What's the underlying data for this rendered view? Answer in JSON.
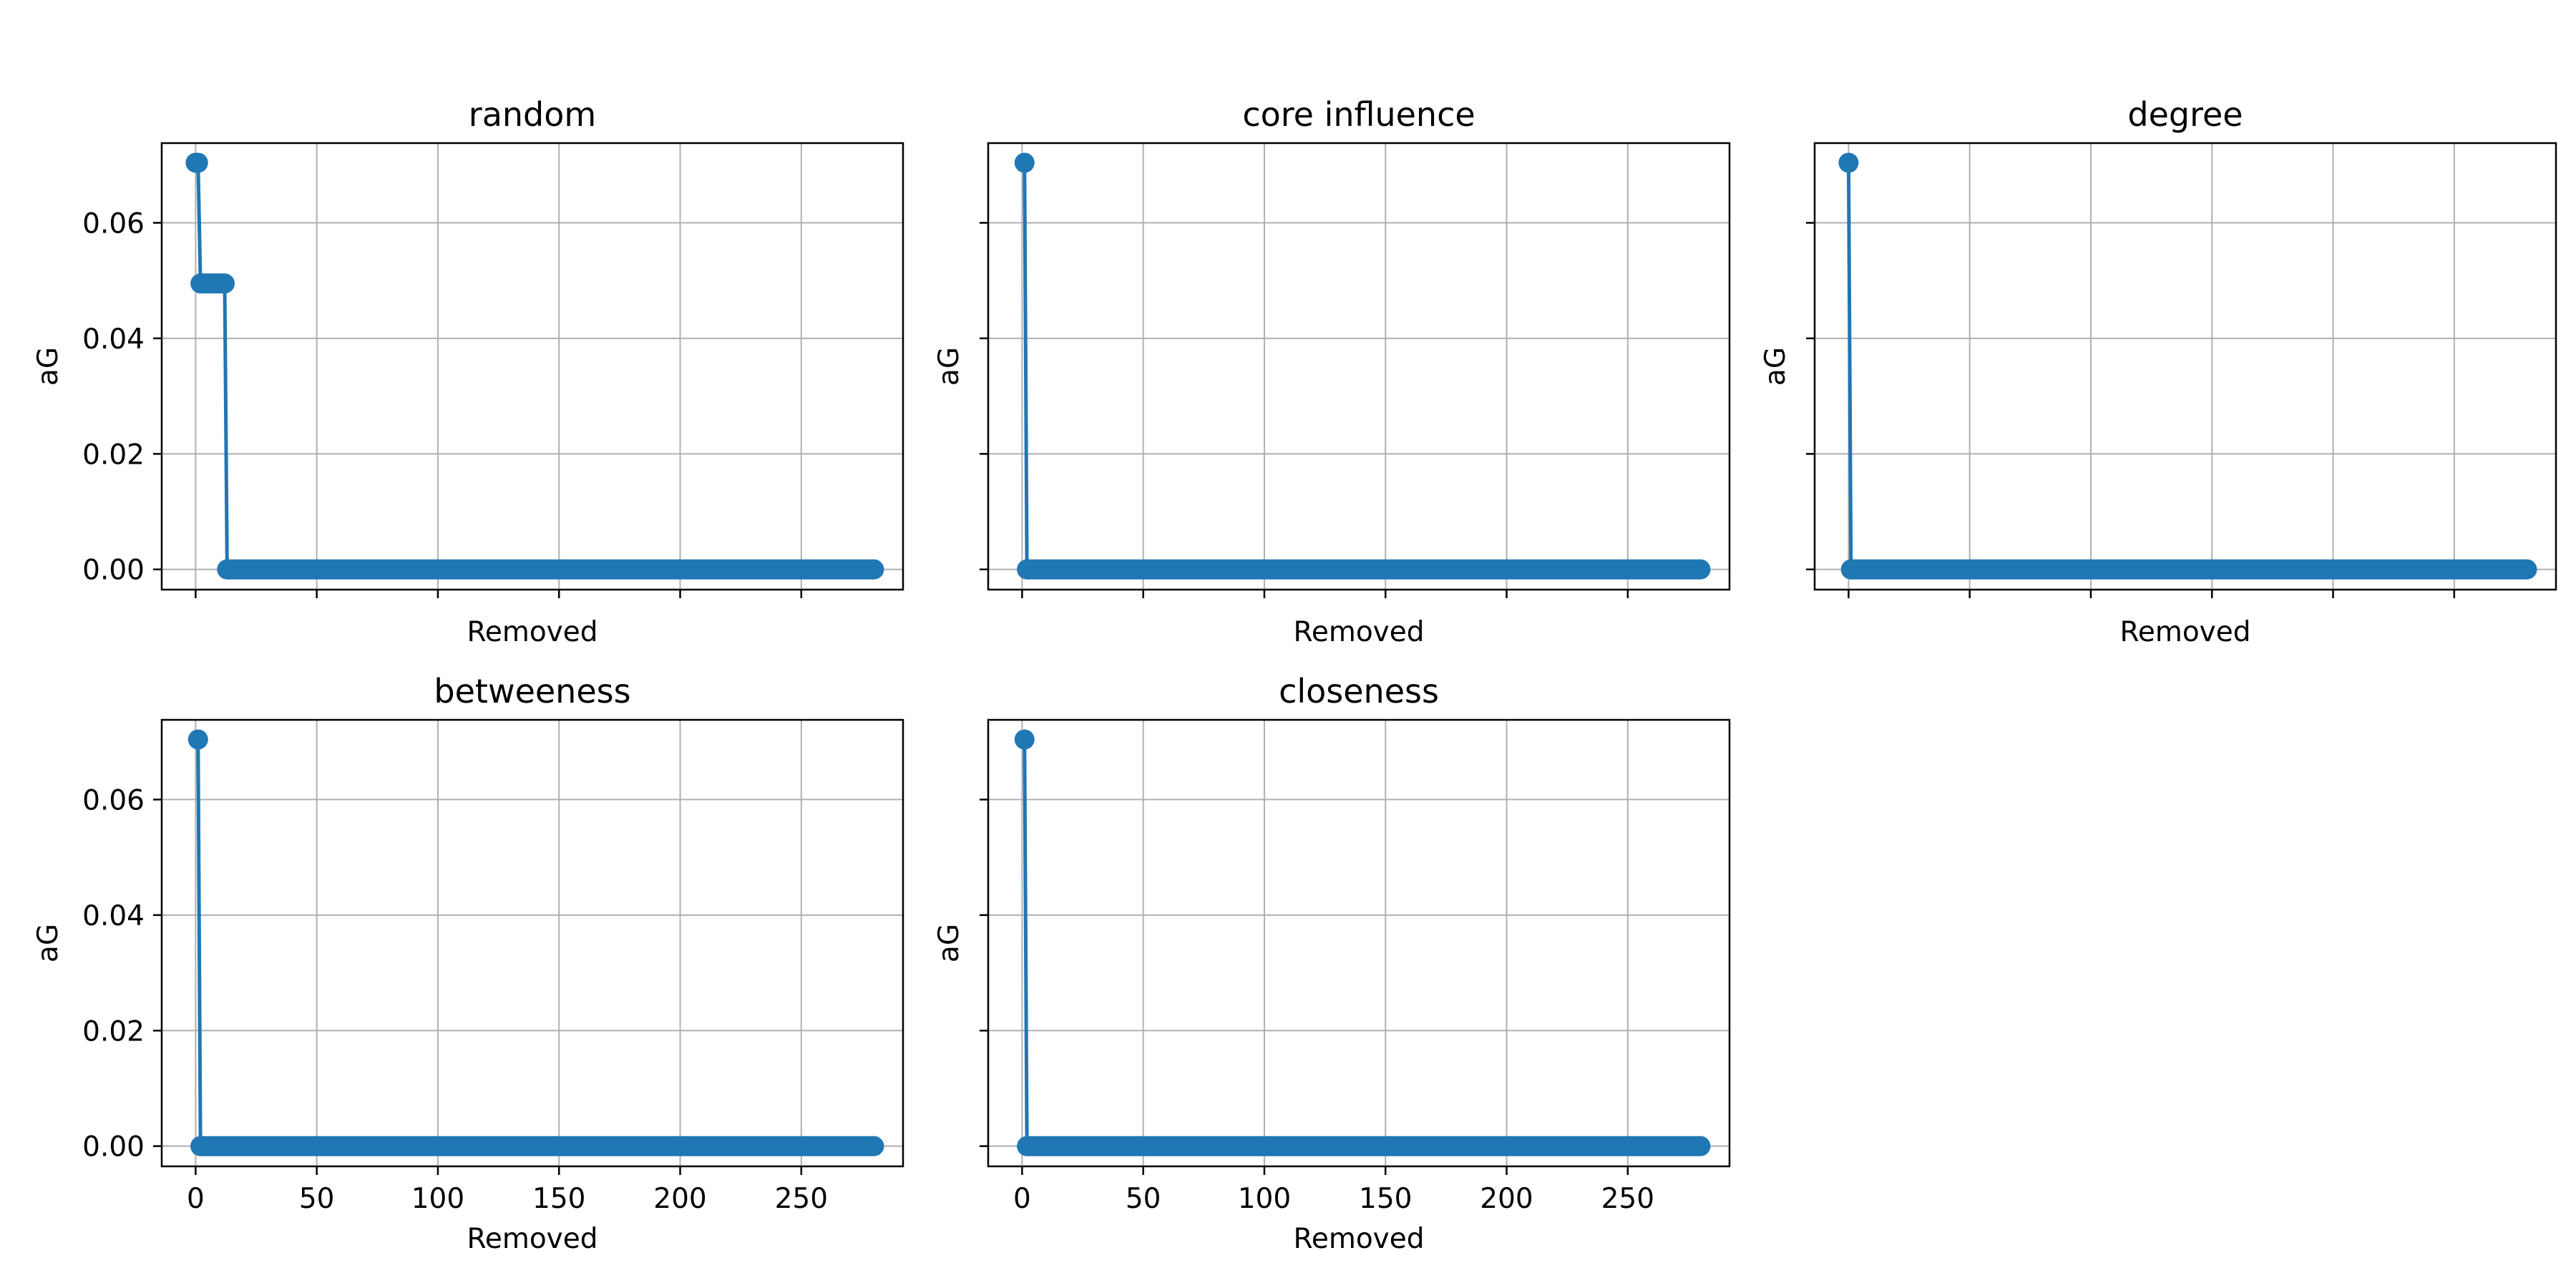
{
  "colors": {
    "series": "#1f77b4",
    "grid": "#b0b0b0",
    "axes": "#000000"
  },
  "chart_data": [
    {
      "type": "line",
      "title": "random",
      "xlabel": "Removed",
      "ylabel": "aG",
      "xlim": [
        -14,
        292
      ],
      "ylim": [
        -0.0035,
        0.0738
      ],
      "xticks": [
        0,
        50,
        100,
        150,
        200,
        250
      ],
      "yticks": [
        0.0,
        0.02,
        0.04,
        0.06
      ],
      "ytick_labels": [
        "0.00",
        "0.02",
        "0.04",
        "0.06"
      ],
      "show_xtick_labels": false,
      "show_ytick_labels": true,
      "grid": true,
      "series": [
        {
          "marker": "circle",
          "points": [
            [
              0,
              0.0704
            ],
            [
              1,
              0.0704
            ],
            [
              2,
              0.0495
            ],
            [
              3,
              0.0495
            ],
            [
              4,
              0.0495
            ],
            [
              5,
              0.0495
            ],
            [
              6,
              0.0495
            ],
            [
              7,
              0.0495
            ],
            [
              8,
              0.0495
            ],
            [
              9,
              0.0495
            ],
            [
              10,
              0.0495
            ],
            [
              11,
              0.0495
            ],
            [
              12,
              0.0495
            ],
            [
              13,
              0.0
            ],
            [
              280,
              0.0
            ]
          ]
        }
      ]
    },
    {
      "type": "line",
      "title": "core influence",
      "xlabel": "Removed",
      "ylabel": "aG",
      "xlim": [
        -14,
        292
      ],
      "ylim": [
        -0.0035,
        0.0738
      ],
      "xticks": [
        0,
        50,
        100,
        150,
        200,
        250
      ],
      "yticks": [
        0.0,
        0.02,
        0.04,
        0.06
      ],
      "ytick_labels": [
        "0.00",
        "0.02",
        "0.04",
        "0.06"
      ],
      "show_xtick_labels": false,
      "show_ytick_labels": false,
      "grid": true,
      "series": [
        {
          "marker": "circle",
          "points": [
            [
              1,
              0.0704
            ],
            [
              2,
              0.0
            ],
            [
              280,
              0.0
            ]
          ]
        }
      ]
    },
    {
      "type": "line",
      "title": "degree",
      "xlabel": "Removed",
      "ylabel": "aG",
      "xlim": [
        -14,
        292
      ],
      "ylim": [
        -0.0035,
        0.0738
      ],
      "xticks": [
        0,
        50,
        100,
        150,
        200,
        250
      ],
      "yticks": [
        0.0,
        0.02,
        0.04,
        0.06
      ],
      "ytick_labels": [
        "0.00",
        "0.02",
        "0.04",
        "0.06"
      ],
      "show_xtick_labels": false,
      "show_ytick_labels": false,
      "grid": true,
      "series": [
        {
          "marker": "circle",
          "points": [
            [
              0,
              0.0704
            ],
            [
              1,
              0.0
            ],
            [
              280,
              0.0
            ]
          ]
        }
      ]
    },
    {
      "type": "line",
      "title": "betweeness",
      "xlabel": "Removed",
      "ylabel": "aG",
      "xlim": [
        -14,
        292
      ],
      "ylim": [
        -0.0035,
        0.0738
      ],
      "xticks": [
        0,
        50,
        100,
        150,
        200,
        250
      ],
      "xtick_labels": [
        "0",
        "50",
        "100",
        "150",
        "200",
        "250"
      ],
      "yticks": [
        0.0,
        0.02,
        0.04,
        0.06
      ],
      "ytick_labels": [
        "0.00",
        "0.02",
        "0.04",
        "0.06"
      ],
      "show_xtick_labels": true,
      "show_ytick_labels": true,
      "grid": true,
      "series": [
        {
          "marker": "circle",
          "points": [
            [
              1,
              0.0704
            ],
            [
              2,
              0.0
            ],
            [
              280,
              0.0
            ]
          ]
        }
      ]
    },
    {
      "type": "line",
      "title": "closeness",
      "xlabel": "Removed",
      "ylabel": "aG",
      "xlim": [
        -14,
        292
      ],
      "ylim": [
        -0.0035,
        0.0738
      ],
      "xticks": [
        0,
        50,
        100,
        150,
        200,
        250
      ],
      "xtick_labels": [
        "0",
        "50",
        "100",
        "150",
        "200",
        "250"
      ],
      "yticks": [
        0.0,
        0.02,
        0.04,
        0.06
      ],
      "ytick_labels": [
        "0.00",
        "0.02",
        "0.04",
        "0.06"
      ],
      "show_xtick_labels": true,
      "show_ytick_labels": false,
      "grid": true,
      "series": [
        {
          "marker": "circle",
          "points": [
            [
              1,
              0.0704
            ],
            [
              2,
              0.0
            ],
            [
              280,
              0.0
            ]
          ]
        }
      ]
    }
  ]
}
